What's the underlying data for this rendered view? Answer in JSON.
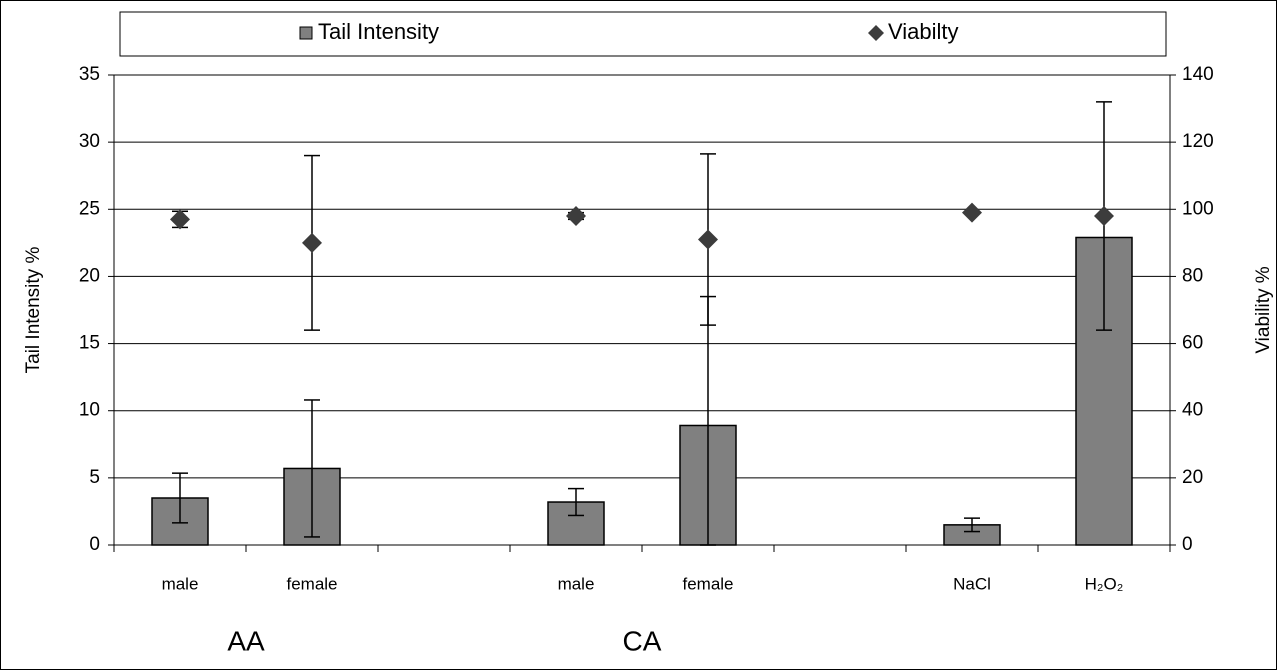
{
  "chart_data": {
    "type": "bar",
    "categories": [
      "male",
      "female",
      null,
      "male",
      "female",
      null,
      "NaCl",
      "H₂O₂"
    ],
    "group_labels": [
      "AA",
      "CA"
    ],
    "y_label": "Tail Intensity %",
    "y2_label": "Viability %",
    "ylim": [
      0,
      35
    ],
    "yticks": [
      0,
      5,
      10,
      15,
      20,
      25,
      30,
      35
    ],
    "y2lim": [
      0,
      140
    ],
    "y2ticks": [
      0,
      20,
      40,
      60,
      80,
      100,
      120,
      140
    ],
    "grid": true,
    "legend": "top",
    "series": [
      {
        "name": "Tail Intensity",
        "type": "bar",
        "color": "#808080",
        "values": [
          3.5,
          5.7,
          null,
          3.2,
          8.9,
          null,
          1.5,
          22.9
        ],
        "errors": [
          1.85,
          5.1,
          null,
          1.0,
          9.6,
          null,
          0.5,
          null
        ]
      },
      {
        "name": "Viabilty",
        "type": "scatter",
        "marker": "diamond",
        "color": "#3c3c3c",
        "axis": "y2",
        "values": [
          97,
          90,
          null,
          98,
          91,
          null,
          99,
          98
        ],
        "errors": [
          2.4,
          26,
          null,
          1,
          25.5,
          null,
          null,
          34
        ]
      }
    ]
  }
}
